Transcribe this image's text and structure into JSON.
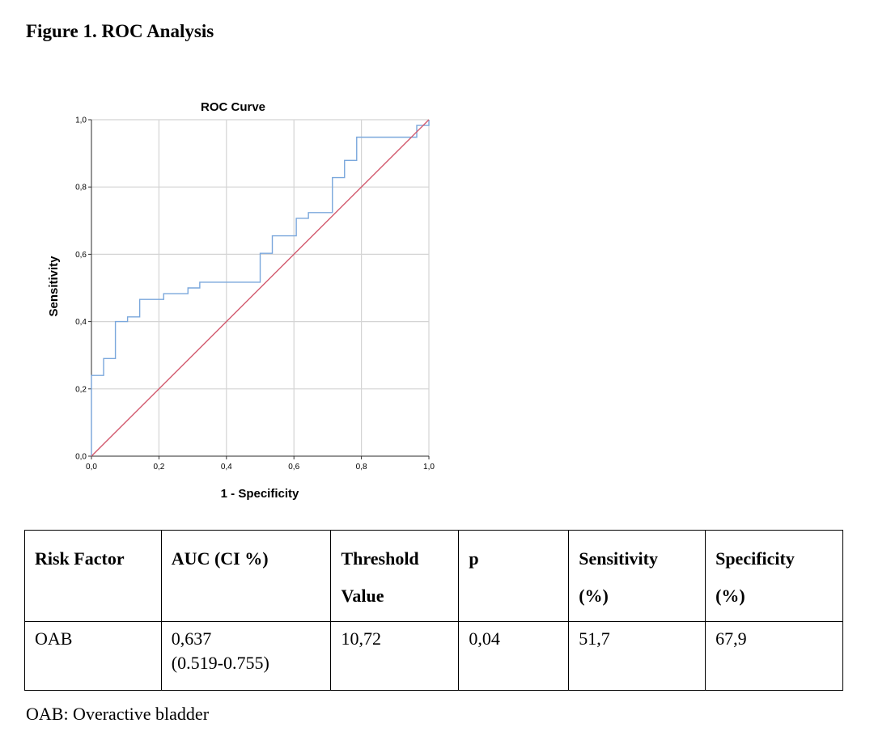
{
  "figure": {
    "title": "Figure 1. ROC Analysis"
  },
  "chart_data": {
    "type": "line",
    "title": "ROC Curve",
    "xlabel": "1 - Specificity",
    "ylabel": "Sensitivity",
    "xlim": [
      0,
      1
    ],
    "ylim": [
      0,
      1
    ],
    "x_ticks": [
      "0,0",
      "0,2",
      "0,4",
      "0,6",
      "0,8",
      "1,0"
    ],
    "y_ticks": [
      "0,0",
      "0,2",
      "0,4",
      "0,6",
      "0,8",
      "1,0"
    ],
    "grid": true,
    "series": [
      {
        "color": "#7aa7dc",
        "step": true,
        "points": [
          [
            0.0,
            0.0
          ],
          [
            0.0,
            0.24
          ],
          [
            0.036,
            0.24
          ],
          [
            0.036,
            0.29
          ],
          [
            0.071,
            0.29
          ],
          [
            0.071,
            0.4
          ],
          [
            0.107,
            0.4
          ],
          [
            0.107,
            0.414
          ],
          [
            0.143,
            0.414
          ],
          [
            0.143,
            0.466
          ],
          [
            0.214,
            0.466
          ],
          [
            0.214,
            0.483
          ],
          [
            0.286,
            0.483
          ],
          [
            0.286,
            0.5
          ],
          [
            0.321,
            0.5
          ],
          [
            0.321,
            0.517
          ],
          [
            0.5,
            0.517
          ],
          [
            0.5,
            0.603
          ],
          [
            0.536,
            0.603
          ],
          [
            0.536,
            0.655
          ],
          [
            0.607,
            0.655
          ],
          [
            0.607,
            0.707
          ],
          [
            0.643,
            0.707
          ],
          [
            0.643,
            0.724
          ],
          [
            0.714,
            0.724
          ],
          [
            0.714,
            0.828
          ],
          [
            0.75,
            0.828
          ],
          [
            0.75,
            0.879
          ],
          [
            0.786,
            0.879
          ],
          [
            0.786,
            0.948
          ],
          [
            0.964,
            0.948
          ],
          [
            0.964,
            0.983
          ],
          [
            1.0,
            0.983
          ],
          [
            1.0,
            1.0
          ]
        ]
      },
      {
        "color": "#d25a6e",
        "step": false,
        "points": [
          [
            0.0,
            0.0
          ],
          [
            1.0,
            1.0
          ]
        ]
      }
    ]
  },
  "table": {
    "headers": [
      [
        "Risk Factor"
      ],
      [
        "AUC (CI %)"
      ],
      [
        "Threshold",
        "Value"
      ],
      [
        "p"
      ],
      [
        "",
        "Sensitivity",
        "(%)"
      ],
      [
        "",
        "Specificity",
        "(%)"
      ]
    ],
    "rows": [
      [
        [
          "OAB"
        ],
        [
          "0,637",
          "(0.519-0.755)"
        ],
        [
          "10,72"
        ],
        [
          "0,04"
        ],
        [
          "51,7"
        ],
        [
          "67,9"
        ]
      ]
    ]
  },
  "footnote": "OAB: Overactive bladder"
}
